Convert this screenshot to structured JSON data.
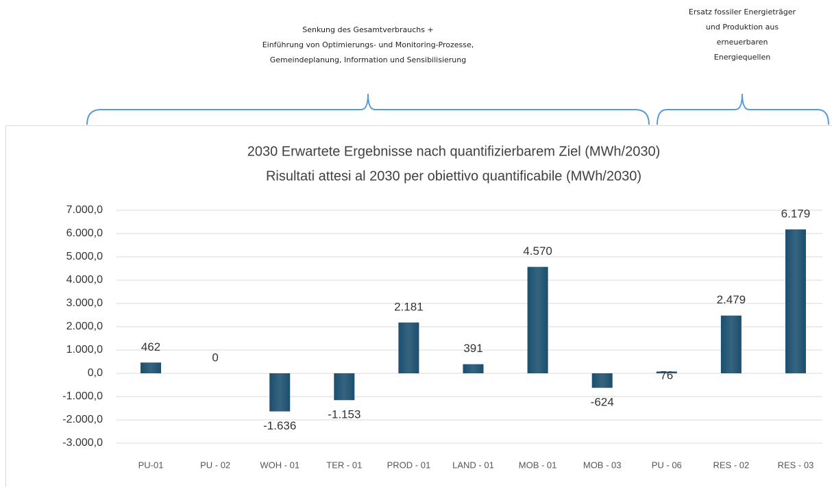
{
  "annotations": [
    {
      "lines": [
        "Senkung des Gesamtverbrauchs +",
        "Einführung von Optimierungs- und Monitoring-Prozesse,",
        "Gemeindeplanung, Information und Sensibilisierung"
      ]
    },
    {
      "lines": [
        "Ersatz fossiler Energieträger",
        "und Produktion aus",
        "erneuerbaren",
        "Energiequellen"
      ]
    }
  ],
  "chart_data": {
    "type": "bar",
    "title": [
      "2030 Erwartete Ergebnisse nach quantifizierbarem Ziel (MWh/2030)",
      "Risultati attesi al 2030 per obiettivo quantificabile (MWh/2030)"
    ],
    "categories": [
      "PU-01",
      "PU - 02",
      "WOH - 01",
      "TER - 01",
      "PROD - 01",
      "LAND - 01",
      "MOB - 01",
      "MOB - 03",
      "PU - 06",
      "RES - 02",
      "RES - 03"
    ],
    "values": [
      462,
      0,
      -1636,
      -1153,
      2181,
      391,
      4570,
      -624,
      76,
      2479,
      6179
    ],
    "value_labels": [
      "462",
      "0",
      "-1.636",
      "-1.153",
      "2.181",
      "391",
      "4.570",
      "-624",
      "76",
      "2.479",
      "6.179"
    ],
    "color": "#1b4f6e",
    "ylim": [
      -3000,
      7000
    ],
    "yticks": [
      {
        "value": -3000,
        "label": "-3.000,0"
      },
      {
        "value": -2000,
        "label": "-2.000,0"
      },
      {
        "value": -1000,
        "label": "-1.000,0"
      },
      {
        "value": 0,
        "label": "0,0"
      },
      {
        "value": 1000,
        "label": "1.000,0"
      },
      {
        "value": 2000,
        "label": "2.000,0"
      },
      {
        "value": 3000,
        "label": "3.000,0"
      },
      {
        "value": 4000,
        "label": "4.000,0"
      },
      {
        "value": 5000,
        "label": "5.000,0"
      },
      {
        "value": 6000,
        "label": "6.000,0"
      },
      {
        "value": 7000,
        "label": "7.000,0"
      }
    ],
    "grid": true
  }
}
